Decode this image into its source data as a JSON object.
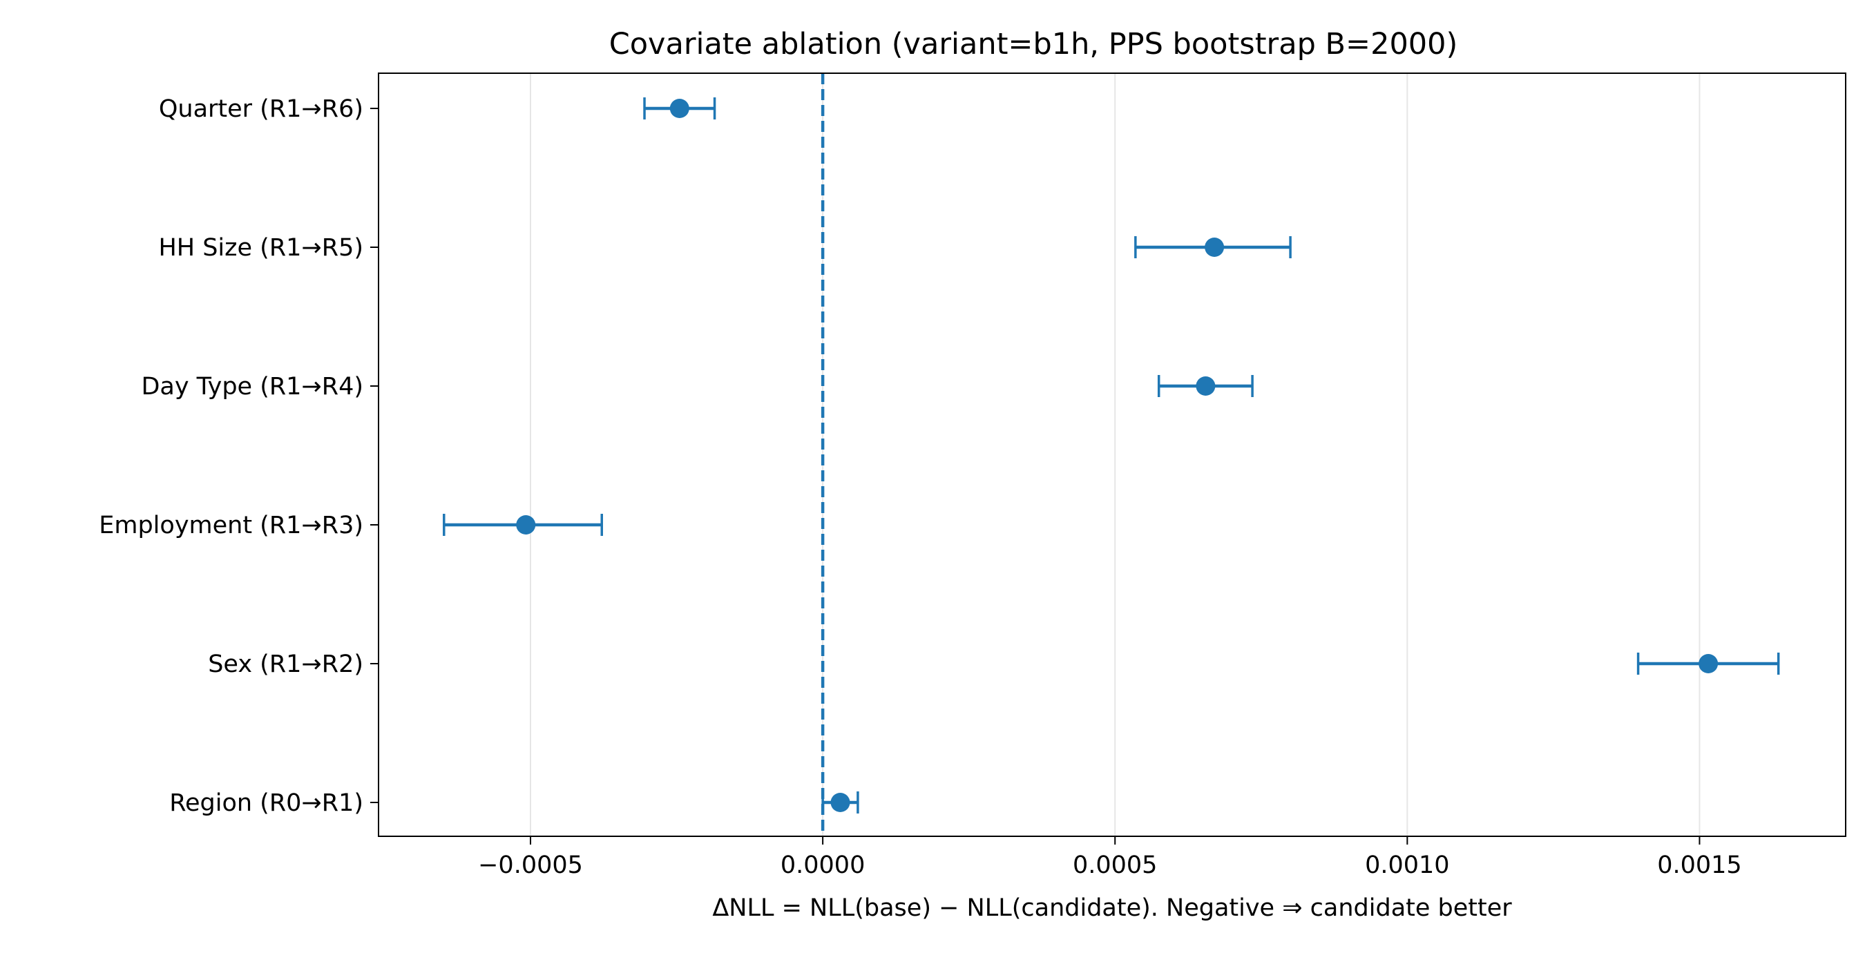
{
  "chart_data": {
    "type": "scatter",
    "title": "Covariate ablation (variant=b1h, PPS bootstrap B=2000)",
    "xlabel": "ΔNLL = NLL(base) − NLL(candidate). Negative ⇒ candidate better",
    "ylabel": "",
    "xlim": [
      -0.00076,
      0.00175
    ],
    "xticks": [
      -0.0005,
      0.0,
      0.0005,
      0.001,
      0.0015
    ],
    "xtick_labels": [
      "−0.0005",
      "0.0000",
      "0.0005",
      "0.0010",
      "0.0015"
    ],
    "grid": "vertical",
    "reference_line": {
      "x": 0,
      "style": "dashed"
    },
    "color": "#1f77b4",
    "categories": [
      "Quarter  (R1→R6)",
      "HH Size  (R1→R5)",
      "Day Type  (R1→R4)",
      "Employment  (R1→R3)",
      "Sex  (R1→R2)",
      "Region  (R0→R1)"
    ],
    "series": [
      {
        "values": [
          -0.000245,
          0.00067,
          0.000655,
          -0.000508,
          0.001515,
          3e-05
        ],
        "ci_low": [
          -0.000305,
          0.000535,
          0.000575,
          -0.000648,
          0.001395,
          0.0
        ],
        "ci_high": [
          -0.000185,
          0.0008,
          0.000735,
          -0.000378,
          0.001635,
          6e-05
        ]
      }
    ]
  }
}
